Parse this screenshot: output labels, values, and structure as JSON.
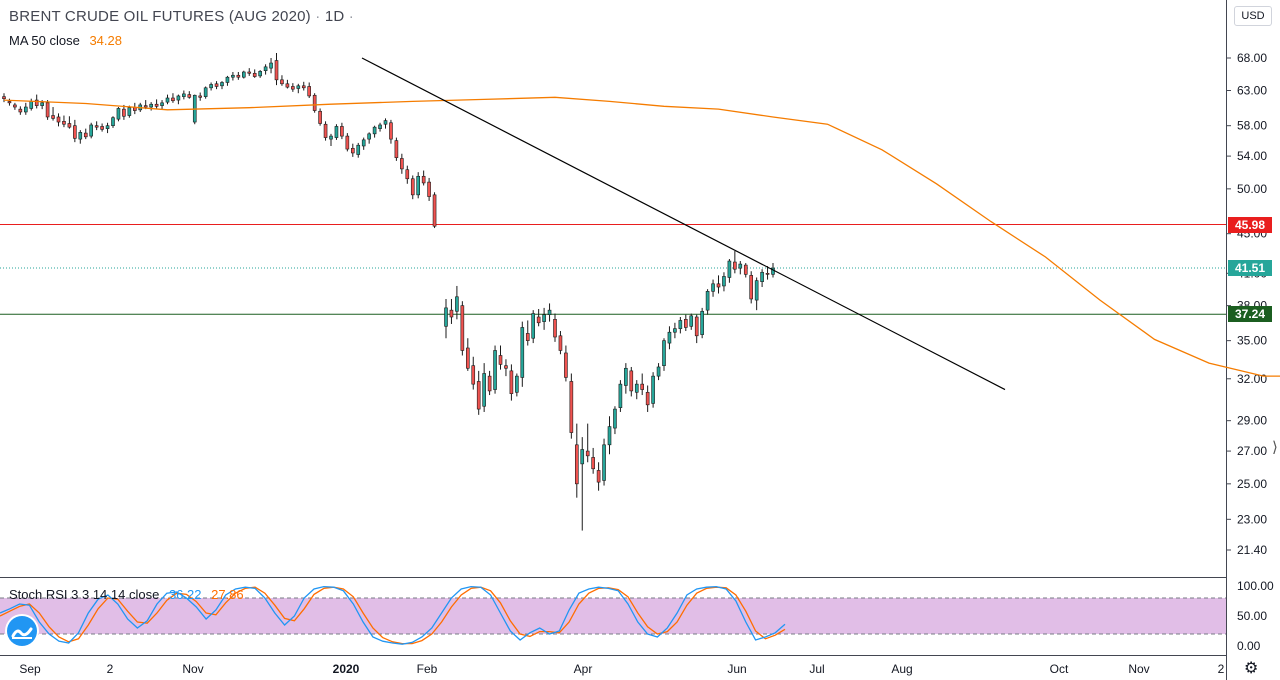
{
  "header": {
    "title": "BRENT CRUDE OIL FUTURES (AUG 2020)",
    "separator": "·",
    "interval": "1D",
    "extra_dot": "·"
  },
  "indicators": {
    "ma": {
      "label": "MA 50 close",
      "value": "34.28",
      "color": "#f57c00"
    },
    "stoch_rsi": {
      "label": "Stoch RSI 3 3 14 14 close",
      "k_value": "36.22",
      "d_value": "27.86",
      "k_color": "#2196f3",
      "d_color": "#ff6d00"
    }
  },
  "currency": "USD",
  "tags": {
    "resistance": {
      "value": "45.98",
      "color": "#e91e1e"
    },
    "last": {
      "value": "41.51",
      "color": "#26a69a"
    },
    "support": {
      "value": "37.24",
      "color": "#1b5e20"
    }
  },
  "colors": {
    "up": "#26a69a",
    "down": "#ef5350",
    "ma": "#f57c00",
    "trendline": "#000000",
    "rsi_band": "#e1bee7"
  },
  "icons": {
    "logo": "tradingview-logo-icon",
    "settings": "gear-icon"
  },
  "chart_data": {
    "type": "candlestick",
    "price_axis": {
      "scale": "log",
      "ticks": [
        "21.40",
        "23.00",
        "25.00",
        "27.00",
        "29.00",
        "32.00",
        "35.00",
        "38.00",
        "41.00",
        "45.00",
        "50.00",
        "54.00",
        "58.00",
        "63.00",
        "68.00"
      ]
    },
    "time_axis": {
      "ticks": [
        "Sep",
        "2",
        "Nov",
        "2020",
        "Feb",
        "Apr",
        "Jun",
        "Jul",
        "Aug",
        "Oct",
        "Nov",
        "2"
      ]
    },
    "ohlc": [
      [
        62.1,
        62.6,
        61.3,
        61.8
      ],
      [
        61.4,
        61.8,
        60.8,
        61.2
      ],
      [
        60.9,
        61.2,
        60.2,
        60.6
      ],
      [
        60.3,
        60.7,
        59.5,
        59.9
      ],
      [
        59.9,
        61.2,
        59.5,
        60.6
      ],
      [
        60.4,
        61.8,
        60.1,
        61.4
      ],
      [
        61.6,
        62.4,
        60.4,
        60.8
      ],
      [
        60.8,
        61.6,
        60.3,
        61.2
      ],
      [
        61.2,
        61.6,
        58.8,
        59.2
      ],
      [
        59.4,
        60.6,
        58.7,
        59.0
      ],
      [
        59.2,
        59.7,
        57.9,
        58.5
      ],
      [
        58.6,
        59.4,
        57.8,
        58.2
      ],
      [
        58.3,
        59.3,
        57.6,
        57.8
      ],
      [
        58.0,
        58.8,
        55.8,
        56.3
      ],
      [
        56.2,
        57.4,
        55.6,
        57.1
      ],
      [
        57.0,
        57.6,
        56.2,
        56.5
      ],
      [
        56.6,
        58.4,
        56.3,
        58.1
      ],
      [
        58.0,
        58.6,
        57.4,
        57.8
      ],
      [
        57.9,
        58.3,
        57.2,
        57.5
      ],
      [
        57.6,
        58.4,
        57.0,
        58.0
      ],
      [
        58.0,
        59.3,
        57.7,
        59.1
      ],
      [
        58.9,
        60.6,
        58.6,
        60.4
      ],
      [
        60.3,
        60.9,
        58.8,
        59.3
      ],
      [
        59.4,
        60.8,
        59.1,
        60.5
      ],
      [
        60.5,
        61.2,
        59.6,
        60.1
      ],
      [
        60.2,
        61.2,
        59.9,
        60.9
      ],
      [
        60.8,
        61.6,
        60.3,
        60.6
      ],
      [
        60.6,
        61.3,
        60.1,
        61.0
      ],
      [
        61.0,
        61.7,
        60.4,
        60.7
      ],
      [
        60.8,
        61.6,
        60.2,
        61.2
      ],
      [
        61.3,
        62.4,
        61.0,
        61.9
      ],
      [
        61.9,
        62.6,
        61.2,
        61.5
      ],
      [
        61.6,
        62.4,
        61.0,
        62.2
      ],
      [
        62.1,
        63.0,
        61.7,
        62.5
      ],
      [
        62.4,
        62.9,
        61.8,
        62.0
      ],
      [
        58.5,
        62.4,
        58.2,
        62.3
      ],
      [
        62.2,
        62.7,
        61.5,
        62.0
      ],
      [
        62.1,
        63.6,
        61.8,
        63.4
      ],
      [
        63.4,
        64.2,
        63.0,
        63.9
      ],
      [
        64.0,
        64.4,
        63.2,
        63.6
      ],
      [
        63.7,
        64.4,
        63.2,
        64.2
      ],
      [
        64.2,
        65.2,
        63.7,
        65.0
      ],
      [
        65.0,
        65.8,
        64.5,
        65.3
      ],
      [
        65.3,
        65.8,
        64.6,
        65.0
      ],
      [
        65.0,
        66.0,
        64.8,
        65.8
      ],
      [
        65.8,
        66.4,
        65.2,
        65.6
      ],
      [
        65.6,
        66.2,
        64.9,
        65.1
      ],
      [
        65.2,
        66.1,
        64.9,
        65.9
      ],
      [
        66.0,
        67.0,
        65.4,
        66.6
      ],
      [
        66.4,
        68.0,
        65.6,
        67.2
      ],
      [
        67.6,
        68.8,
        63.8,
        64.6
      ],
      [
        64.6,
        65.3,
        63.7,
        64.0
      ],
      [
        64.0,
        64.6,
        63.3,
        63.5
      ],
      [
        63.6,
        64.1,
        62.8,
        63.2
      ],
      [
        63.3,
        64.0,
        62.6,
        63.7
      ],
      [
        63.7,
        64.3,
        63.0,
        63.4
      ],
      [
        63.6,
        64.2,
        61.9,
        62.2
      ],
      [
        62.3,
        62.6,
        59.8,
        60.1
      ],
      [
        60.0,
        60.4,
        58.0,
        58.3
      ],
      [
        58.2,
        58.6,
        56.0,
        56.4
      ],
      [
        56.2,
        56.9,
        55.3,
        56.6
      ],
      [
        56.4,
        58.2,
        56.1,
        57.9
      ],
      [
        57.9,
        58.4,
        56.2,
        56.6
      ],
      [
        56.6,
        57.0,
        54.6,
        54.9
      ],
      [
        55.0,
        55.6,
        53.9,
        54.4
      ],
      [
        54.2,
        55.7,
        53.8,
        55.4
      ],
      [
        55.3,
        56.4,
        54.8,
        56.1
      ],
      [
        56.2,
        57.1,
        55.6,
        56.9
      ],
      [
        56.9,
        58.0,
        56.4,
        57.8
      ],
      [
        57.6,
        58.4,
        57.2,
        58.1
      ],
      [
        58.2,
        59.0,
        57.6,
        58.7
      ],
      [
        58.4,
        58.8,
        55.6,
        56.2
      ],
      [
        56.0,
        56.4,
        53.4,
        53.8
      ],
      [
        53.7,
        54.3,
        51.8,
        52.4
      ],
      [
        52.3,
        52.8,
        50.6,
        51.2
      ],
      [
        51.2,
        51.6,
        48.8,
        49.3
      ],
      [
        49.3,
        52.0,
        48.9,
        51.5
      ],
      [
        51.5,
        52.2,
        50.4,
        50.7
      ],
      [
        50.8,
        51.3,
        48.6,
        49.1
      ],
      [
        49.3,
        49.6,
        45.6,
        45.8
      ],
      [
        36.2,
        38.6,
        35.2,
        37.8
      ],
      [
        37.6,
        38.6,
        36.4,
        37.0
      ],
      [
        37.5,
        39.8,
        36.8,
        38.8
      ],
      [
        38.0,
        38.4,
        33.8,
        34.2
      ],
      [
        34.4,
        35.2,
        32.6,
        32.8
      ],
      [
        33.0,
        33.7,
        31.2,
        31.6
      ],
      [
        31.8,
        32.6,
        29.4,
        29.8
      ],
      [
        30.0,
        33.2,
        29.6,
        32.4
      ],
      [
        32.2,
        32.6,
        30.8,
        31.1
      ],
      [
        31.2,
        34.6,
        30.9,
        34.2
      ],
      [
        33.8,
        34.6,
        32.7,
        33.1
      ],
      [
        33.0,
        33.5,
        32.2,
        32.8
      ],
      [
        32.6,
        33.1,
        30.4,
        30.9
      ],
      [
        31.0,
        32.4,
        30.7,
        32.2
      ],
      [
        32.1,
        36.6,
        31.4,
        36.1
      ],
      [
        35.6,
        36.7,
        34.6,
        35.0
      ],
      [
        35.2,
        37.6,
        34.8,
        37.3
      ],
      [
        37.0,
        37.7,
        36.2,
        36.5
      ],
      [
        36.6,
        37.8,
        35.9,
        37.2
      ],
      [
        37.2,
        38.2,
        36.6,
        37.6
      ],
      [
        36.8,
        37.3,
        34.9,
        35.3
      ],
      [
        35.4,
        35.8,
        33.9,
        34.2
      ],
      [
        34.0,
        34.6,
        31.8,
        32.1
      ],
      [
        31.8,
        32.4,
        27.8,
        28.2
      ],
      [
        27.4,
        28.8,
        24.2,
        25.0
      ],
      [
        26.2,
        27.9,
        22.4,
        27.1
      ],
      [
        27.0,
        28.8,
        26.3,
        26.7
      ],
      [
        26.6,
        27.2,
        25.6,
        25.9
      ],
      [
        25.8,
        26.3,
        24.6,
        25.1
      ],
      [
        25.2,
        27.8,
        24.9,
        27.4
      ],
      [
        27.4,
        29.3,
        26.8,
        28.6
      ],
      [
        28.5,
        30.0,
        28.1,
        29.8
      ],
      [
        29.9,
        31.9,
        29.6,
        31.6
      ],
      [
        31.5,
        33.2,
        30.9,
        32.8
      ],
      [
        32.6,
        32.9,
        30.7,
        31.1
      ],
      [
        31.0,
        31.9,
        30.5,
        31.6
      ],
      [
        31.6,
        32.4,
        30.8,
        31.2
      ],
      [
        31.0,
        31.5,
        29.6,
        30.1
      ],
      [
        30.2,
        32.5,
        29.9,
        32.2
      ],
      [
        32.2,
        33.2,
        31.9,
        32.9
      ],
      [
        33.0,
        35.2,
        32.6,
        35.0
      ],
      [
        34.8,
        36.2,
        34.3,
        35.7
      ],
      [
        35.7,
        36.5,
        35.2,
        36.0
      ],
      [
        36.0,
        37.0,
        35.6,
        36.7
      ],
      [
        36.8,
        37.2,
        35.8,
        36.1
      ],
      [
        36.2,
        37.3,
        35.9,
        37.1
      ],
      [
        37.0,
        37.2,
        34.8,
        35.4
      ],
      [
        35.5,
        37.8,
        35.2,
        37.5
      ],
      [
        37.6,
        39.5,
        37.2,
        39.3
      ],
      [
        39.3,
        40.4,
        38.8,
        40.0
      ],
      [
        40.0,
        40.8,
        39.1,
        39.7
      ],
      [
        39.8,
        41.1,
        39.3,
        40.7
      ],
      [
        40.6,
        42.4,
        40.1,
        42.2
      ],
      [
        42.1,
        43.2,
        41.0,
        41.4
      ],
      [
        41.5,
        42.2,
        40.9,
        41.9
      ],
      [
        41.8,
        42.0,
        40.6,
        40.9
      ],
      [
        40.8,
        41.2,
        38.2,
        38.6
      ],
      [
        38.5,
        40.6,
        37.6,
        40.3
      ],
      [
        40.2,
        41.4,
        39.7,
        41.1
      ],
      [
        41.0,
        41.7,
        40.4,
        40.9
      ],
      [
        40.9,
        42.0,
        40.6,
        41.51
      ]
    ],
    "ma50": [
      [
        0,
        61.6
      ],
      [
        15,
        61.1
      ],
      [
        30,
        60.2
      ],
      [
        45,
        60.5
      ],
      [
        60,
        61.0
      ],
      [
        75,
        61.4
      ],
      [
        87,
        61.7
      ],
      [
        100,
        62.0
      ],
      [
        110,
        61.4
      ],
      [
        120,
        60.7
      ],
      [
        130,
        60.3
      ],
      [
        140,
        59.2
      ],
      [
        150,
        58.2
      ],
      [
        160,
        54.8
      ],
      [
        170,
        50.6
      ],
      [
        180,
        46.3
      ],
      [
        190,
        42.6
      ],
      [
        200,
        38.5
      ],
      [
        210,
        35.1
      ],
      [
        220,
        33.2
      ],
      [
        230,
        32.2
      ],
      [
        240,
        32.2
      ],
      [
        250,
        32.9
      ],
      [
        260,
        33.8
      ],
      [
        270,
        34.3
      ],
      [
        285,
        34.28
      ]
    ],
    "levels": {
      "resistance": 45.98,
      "last": 41.51,
      "support": 37.24
    },
    "trendline": {
      "from": [
        0,
        68.0
      ],
      "to": [
        1000,
        31.2
      ],
      "x_domain": "pixel-anchored"
    },
    "stoch_rsi": {
      "range": [
        0,
        100
      ],
      "bands": [
        20,
        80
      ],
      "ticks": [
        "100.00",
        "50.00",
        "0.00"
      ],
      "k": [
        55,
        62,
        70,
        68,
        40,
        20,
        8,
        5,
        22,
        55,
        78,
        85,
        70,
        45,
        30,
        42,
        70,
        88,
        90,
        80,
        65,
        45,
        60,
        85,
        95,
        98,
        96,
        80,
        55,
        35,
        50,
        80,
        95,
        99,
        98,
        92,
        70,
        40,
        15,
        8,
        5,
        3,
        6,
        15,
        30,
        55,
        80,
        95,
        99,
        98,
        85,
        55,
        25,
        10,
        22,
        30,
        20,
        25,
        60,
        88,
        95,
        98,
        96,
        92,
        70,
        40,
        20,
        15,
        30,
        55,
        85,
        95,
        98,
        99,
        95,
        75,
        40,
        10,
        15,
        22,
        36.22
      ],
      "d": [
        50,
        58,
        66,
        70,
        55,
        32,
        15,
        7,
        12,
        35,
        62,
        80,
        78,
        58,
        40,
        38,
        55,
        76,
        88,
        86,
        74,
        55,
        52,
        72,
        88,
        96,
        98,
        88,
        68,
        46,
        42,
        62,
        86,
        96,
        98,
        95,
        82,
        55,
        30,
        14,
        7,
        4,
        4,
        9,
        20,
        40,
        65,
        85,
        96,
        98,
        92,
        72,
        42,
        20,
        16,
        24,
        24,
        22,
        40,
        70,
        88,
        96,
        97,
        94,
        82,
        55,
        32,
        20,
        24,
        40,
        68,
        88,
        96,
        98,
        97,
        85,
        58,
        25,
        12,
        18,
        27.86
      ]
    }
  }
}
